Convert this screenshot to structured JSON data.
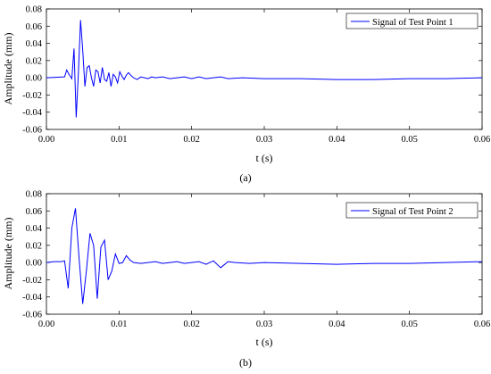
{
  "chart_data": [
    {
      "type": "line",
      "caption": "(a)",
      "xlabel": "t (s)",
      "ylabel": "Amplitude (mm)",
      "xlim": [
        0,
        0.06
      ],
      "ylim": [
        -0.06,
        0.08
      ],
      "xticks": [
        "0.00",
        "0.01",
        "0.02",
        "0.03",
        "0.04",
        "0.05",
        "0.06"
      ],
      "yticks": [
        "0.08",
        "0.06",
        "0.04",
        "0.02",
        "0.00",
        "-0.02",
        "-0.04",
        "-0.06"
      ],
      "legend_position": "top-right",
      "series_color": "#0000ff",
      "series": [
        {
          "name": "Signal of Test Point 1",
          "x": [
            0,
            0.0025,
            0.0028,
            0.0031,
            0.0035,
            0.0038,
            0.0041,
            0.0044,
            0.0047,
            0.005,
            0.0053,
            0.0056,
            0.0059,
            0.0062,
            0.0065,
            0.0068,
            0.0071,
            0.0074,
            0.0077,
            0.008,
            0.0083,
            0.0086,
            0.0089,
            0.0092,
            0.0095,
            0.0098,
            0.0101,
            0.0104,
            0.0107,
            0.011,
            0.0113,
            0.0116,
            0.012,
            0.0125,
            0.013,
            0.0135,
            0.014,
            0.0145,
            0.015,
            0.016,
            0.017,
            0.018,
            0.019,
            0.02,
            0.021,
            0.022,
            0.023,
            0.024,
            0.025,
            0.027,
            0.03,
            0.035,
            0.04,
            0.045,
            0.05,
            0.055,
            0.06
          ],
          "y": [
            0.0,
            0.001,
            0.009,
            0.004,
            -0.001,
            0.034,
            -0.046,
            0.005,
            0.067,
            0.032,
            -0.01,
            0.012,
            0.014,
            0.0,
            -0.01,
            0.009,
            0.007,
            -0.006,
            0.012,
            -0.002,
            -0.004,
            0.006,
            -0.01,
            0.004,
            0.001,
            -0.006,
            0.007,
            0.002,
            -0.002,
            0.003,
            0.006,
            0.003,
            0.0,
            -0.002,
            0.001,
            0.0,
            -0.001,
            0.001,
            0.0,
            0.001,
            -0.001,
            0.0,
            0.001,
            -0.001,
            0.001,
            -0.001,
            0.0,
            0.001,
            -0.001,
            0.0,
            -0.001,
            -0.001,
            -0.002,
            -0.002,
            -0.001,
            -0.001,
            0.0
          ]
        }
      ]
    },
    {
      "type": "line",
      "caption": "(b)",
      "xlabel": "t (s)",
      "ylabel": "Amplitude (mm)",
      "xlim": [
        0,
        0.06
      ],
      "ylim": [
        -0.06,
        0.08
      ],
      "xticks": [
        "0.00",
        "0.01",
        "0.02",
        "0.03",
        "0.04",
        "0.05",
        "0.06"
      ],
      "yticks": [
        "0.08",
        "0.06",
        "0.04",
        "0.02",
        "0.00",
        "-0.02",
        "-0.04",
        "-0.06"
      ],
      "legend_position": "top-right",
      "series_color": "#0000ff",
      "series": [
        {
          "name": "Signal of Test Point 2",
          "x": [
            0,
            0.001,
            0.002,
            0.0025,
            0.003,
            0.0035,
            0.004,
            0.0045,
            0.005,
            0.0055,
            0.006,
            0.0065,
            0.007,
            0.0075,
            0.008,
            0.0085,
            0.009,
            0.0095,
            0.01,
            0.0105,
            0.011,
            0.0115,
            0.012,
            0.013,
            0.014,
            0.015,
            0.016,
            0.017,
            0.018,
            0.019,
            0.02,
            0.021,
            0.022,
            0.023,
            0.024,
            0.025,
            0.026,
            0.028,
            0.03,
            0.035,
            0.04,
            0.045,
            0.05,
            0.055,
            0.06
          ],
          "y": [
            0.0,
            0.001,
            0.001,
            0.002,
            -0.03,
            0.04,
            0.063,
            0.005,
            -0.048,
            -0.01,
            0.034,
            0.02,
            -0.042,
            0.018,
            0.026,
            -0.02,
            -0.01,
            0.01,
            -0.001,
            0.0,
            0.008,
            0.003,
            0.0,
            -0.001,
            0.0,
            0.001,
            -0.001,
            0.0,
            0.001,
            -0.001,
            0.0,
            0.001,
            -0.002,
            0.002,
            -0.006,
            0.001,
            0.0,
            -0.001,
            0.0,
            -0.001,
            -0.002,
            -0.001,
            -0.001,
            0.0,
            0.001
          ]
        }
      ]
    }
  ]
}
